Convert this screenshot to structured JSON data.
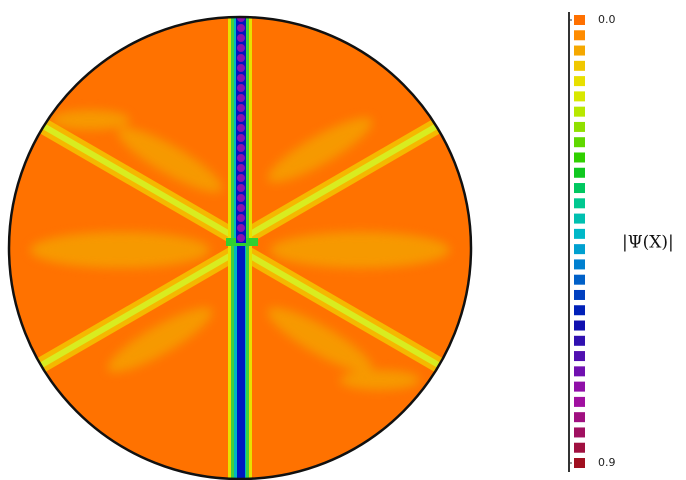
{
  "chart_data": {
    "type": "contour",
    "colorbar_label": "|Ψ(X)|",
    "zlim": [
      0,
      0.9
    ],
    "zticks": [
      {
        "value": 0,
        "label": "0.0"
      },
      0.9
    ],
    "colors": [
      "#ff7000",
      "#ff8c00",
      "#f5a800",
      "#f0c800",
      "#e8e000",
      "#d8e800",
      "#b8e800",
      "#90e000",
      "#60d800",
      "#30d000",
      "#10c820",
      "#00c860",
      "#00c890",
      "#00c0b0",
      "#00b8c8",
      "#00a0d0",
      "#0080d0",
      "#0060c8",
      "#0040c0",
      "#0020b8",
      "#1010b0",
      "#3010b0",
      "#5010b0",
      "#7010b0",
      "#9010a8",
      "#a010a0",
      "#a01080",
      "#a01060",
      "#a01040",
      "#a01020"
    ]
  }
}
